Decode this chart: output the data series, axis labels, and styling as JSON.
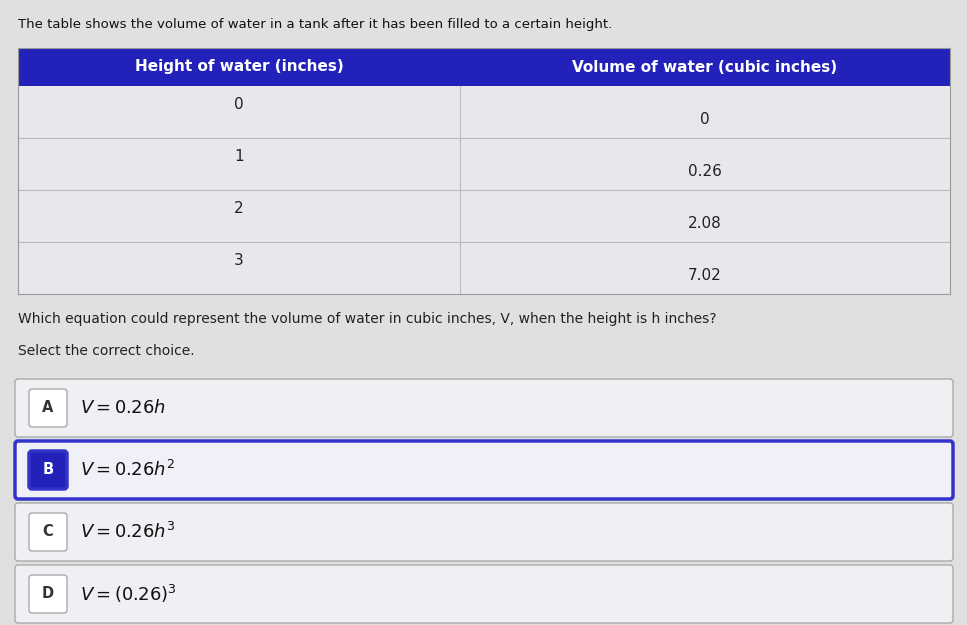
{
  "bg_color": "#e0e0e0",
  "header_color": "#2222bb",
  "header_text_color": "#ffffff",
  "table_line_color": "#bbbbbb",
  "table_bg": "#e8e8ec",
  "intro_text": "The table shows the volume of water in a tank after it has been filled to a certain height.",
  "col1_header": "Height of water (inches)",
  "col2_header": "Volume of water (cubic inches)",
  "heights": [
    "0",
    "1",
    "2",
    "3"
  ],
  "volumes": [
    "0",
    "0.26",
    "2.08",
    "7.02"
  ],
  "question_text": "Which equation could represent the volume of water in cubic inches, V, when the height is h inches?",
  "select_text": "Select the correct choice.",
  "choices": [
    {
      "label": "A",
      "equation": "$V = 0.26h$",
      "selected": false
    },
    {
      "label": "B",
      "equation": "$V = 0.26h^2$",
      "selected": true
    },
    {
      "label": "C",
      "equation": "$V = 0.26h^3$",
      "selected": false
    },
    {
      "label": "D",
      "equation": "$V = (0.26)^3$",
      "selected": false
    }
  ],
  "selected_border_color": "#3333cc",
  "unselected_border_color": "#aaaaaa",
  "selected_label_bg": "#2222bb",
  "unselected_label_bg": "#ffffff",
  "label_text_color_selected": "#ffffff",
  "label_text_color_unselected": "#333333",
  "choice_bg": "#f0f0f4",
  "choice_bg_selected": "#f0f0f8"
}
